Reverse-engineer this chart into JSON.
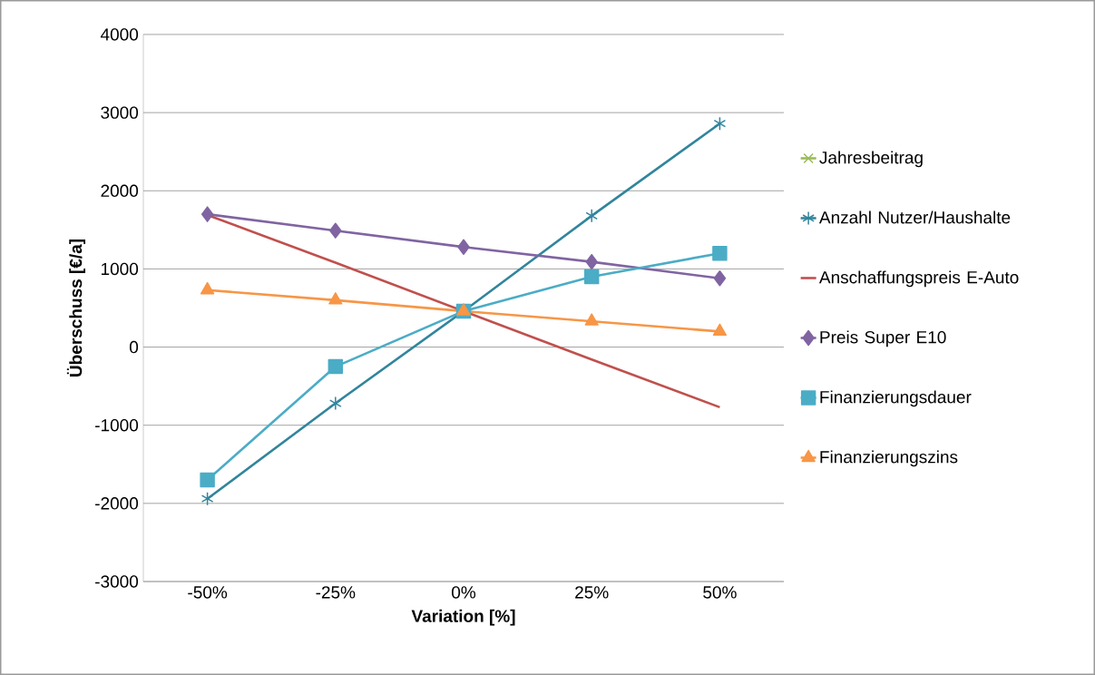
{
  "chart_data": {
    "type": "line",
    "xlabel": "Variation [%]",
    "ylabel": "Überschuss [€/a]",
    "categories": [
      "-50%",
      "-25%",
      "0%",
      "25%",
      "50%"
    ],
    "series": [
      {
        "name": "Jahresbeitrag",
        "color": "#9bbb59",
        "marker": "cross",
        "values": [
          null,
          null,
          null,
          null,
          null
        ]
      },
      {
        "name": "Anzahl Nutzer/Haushalte",
        "color": "#31859c",
        "marker": "cross",
        "values": [
          -1940,
          -720,
          460,
          1680,
          2860
        ]
      },
      {
        "name": "Anschaffungspreis E-Auto",
        "color": "#c0504d",
        "marker": "none",
        "values": [
          1690,
          1080,
          460,
          -160,
          -770
        ]
      },
      {
        "name": "Preis Super E10",
        "color": "#8064a2",
        "marker": "diamond",
        "values": [
          1700,
          1490,
          1280,
          1090,
          880
        ]
      },
      {
        "name": "Finanzierungsdauer",
        "color": "#4bacc6",
        "marker": "square",
        "values": [
          -1700,
          -250,
          460,
          900,
          1200
        ]
      },
      {
        "name": "Finanzierungszins",
        "color": "#f79646",
        "marker": "triangle",
        "values": [
          730,
          600,
          460,
          330,
          200
        ]
      }
    ],
    "ylim": [
      -3000,
      4000
    ],
    "yticks": [
      -3000,
      -2000,
      -1000,
      0,
      1000,
      2000,
      3000,
      4000
    ],
    "grid": "y",
    "legend": "right",
    "line_style": "solid"
  }
}
